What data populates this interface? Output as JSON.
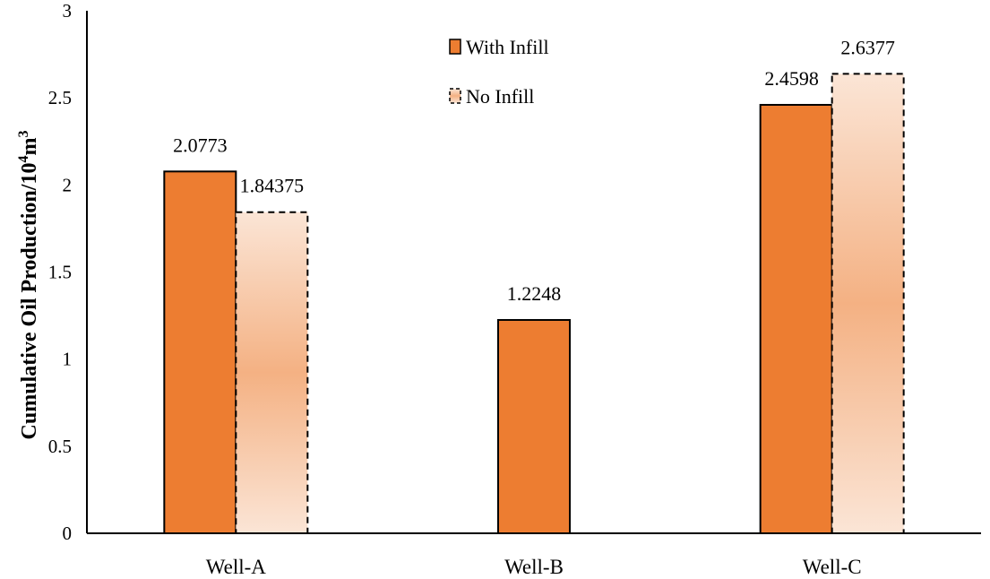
{
  "chart_data": {
    "type": "bar",
    "categories": [
      "Well-A",
      "Well-B",
      "Well-C"
    ],
    "series": [
      {
        "name": "With Infill",
        "values": [
          2.0773,
          1.2248,
          2.4598
        ],
        "labels": [
          "2.0773",
          "1.2248",
          "2.4598"
        ],
        "color": "#ED7D31",
        "style": "solid"
      },
      {
        "name": "No Infill",
        "values": [
          1.84375,
          null,
          2.6377
        ],
        "labels": [
          "1.84375",
          "",
          "2.6377"
        ],
        "color": "#F4B183",
        "style": "gradient-dashed"
      }
    ],
    "ylabel_main": "Cumulative Oil Production/10",
    "ylabel_sup1": "4",
    "ylabel_mid": "m",
    "ylabel_sup2": "3",
    "ylim": [
      0,
      3
    ],
    "yticks": [
      "0",
      "0.5",
      "1",
      "1.5",
      "2",
      "2.5",
      "3"
    ],
    "grid": false,
    "legend_position": "top-center"
  }
}
